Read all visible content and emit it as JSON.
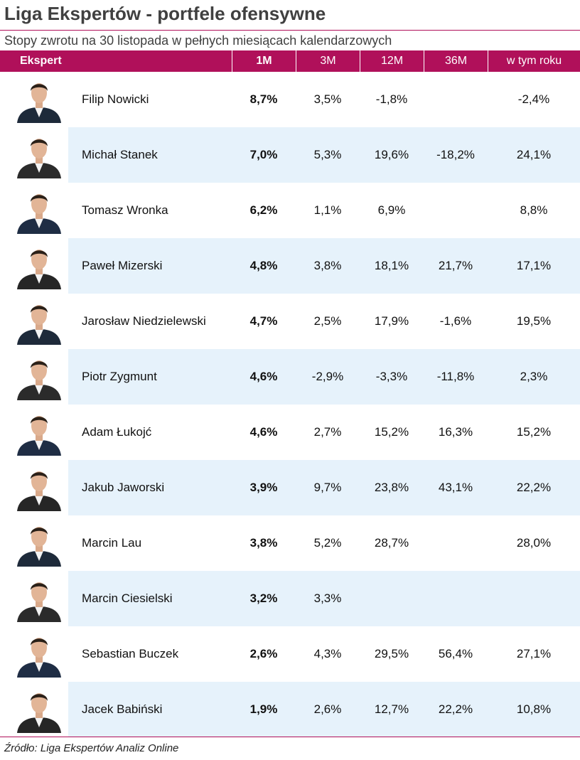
{
  "title": "Liga Ekspertów - portfele ofensywne",
  "subtitle": "Stopy zwrotu na 30 listopada w pełnych miesiącach kalendarzowych",
  "colors": {
    "accent": "#b0105a",
    "stripe": "#e6f2fb"
  },
  "columns": [
    "Ekspert",
    "1M",
    "3M",
    "12M",
    "36M",
    "w tym roku"
  ],
  "rows": [
    {
      "name": "Filip Nowicki",
      "m1": "8,7%",
      "m3": "3,5%",
      "m12": "-1,8%",
      "m36": "",
      "ytd": "-2,4%"
    },
    {
      "name": "Michał Stanek",
      "m1": "7,0%",
      "m3": "5,3%",
      "m12": "19,6%",
      "m36": "-18,2%",
      "ytd": "24,1%"
    },
    {
      "name": "Tomasz Wronka",
      "m1": "6,2%",
      "m3": "1,1%",
      "m12": "6,9%",
      "m36": "",
      "ytd": "8,8%"
    },
    {
      "name": "Paweł Mizerski",
      "m1": "4,8%",
      "m3": "3,8%",
      "m12": "18,1%",
      "m36": "21,7%",
      "ytd": "17,1%"
    },
    {
      "name": "Jarosław Niedzielewski",
      "m1": "4,7%",
      "m3": "2,5%",
      "m12": "17,9%",
      "m36": "-1,6%",
      "ytd": "19,5%"
    },
    {
      "name": "Piotr Zygmunt",
      "m1": "4,6%",
      "m3": "-2,9%",
      "m12": "-3,3%",
      "m36": "-11,8%",
      "ytd": "2,3%"
    },
    {
      "name": "Adam Łukojć",
      "m1": "4,6%",
      "m3": "2,7%",
      "m12": "15,2%",
      "m36": "16,3%",
      "ytd": "15,2%"
    },
    {
      "name": "Jakub Jaworski",
      "m1": "3,9%",
      "m3": "9,7%",
      "m12": "23,8%",
      "m36": "43,1%",
      "ytd": "22,2%"
    },
    {
      "name": "Marcin Lau",
      "m1": "3,8%",
      "m3": "5,2%",
      "m12": "28,7%",
      "m36": "",
      "ytd": "28,0%"
    },
    {
      "name": "Marcin Ciesielski",
      "m1": "3,2%",
      "m3": "3,3%",
      "m12": "",
      "m36": "",
      "ytd": ""
    },
    {
      "name": "Sebastian Buczek",
      "m1": "2,6%",
      "m3": "4,3%",
      "m12": "29,5%",
      "m36": "56,4%",
      "ytd": "27,1%"
    },
    {
      "name": "Jacek Babiński",
      "m1": "1,9%",
      "m3": "2,6%",
      "m12": "12,7%",
      "m36": "22,2%",
      "ytd": "10,8%"
    }
  ],
  "source": "Źródło: Liga Ekspertów Analiz Online"
}
